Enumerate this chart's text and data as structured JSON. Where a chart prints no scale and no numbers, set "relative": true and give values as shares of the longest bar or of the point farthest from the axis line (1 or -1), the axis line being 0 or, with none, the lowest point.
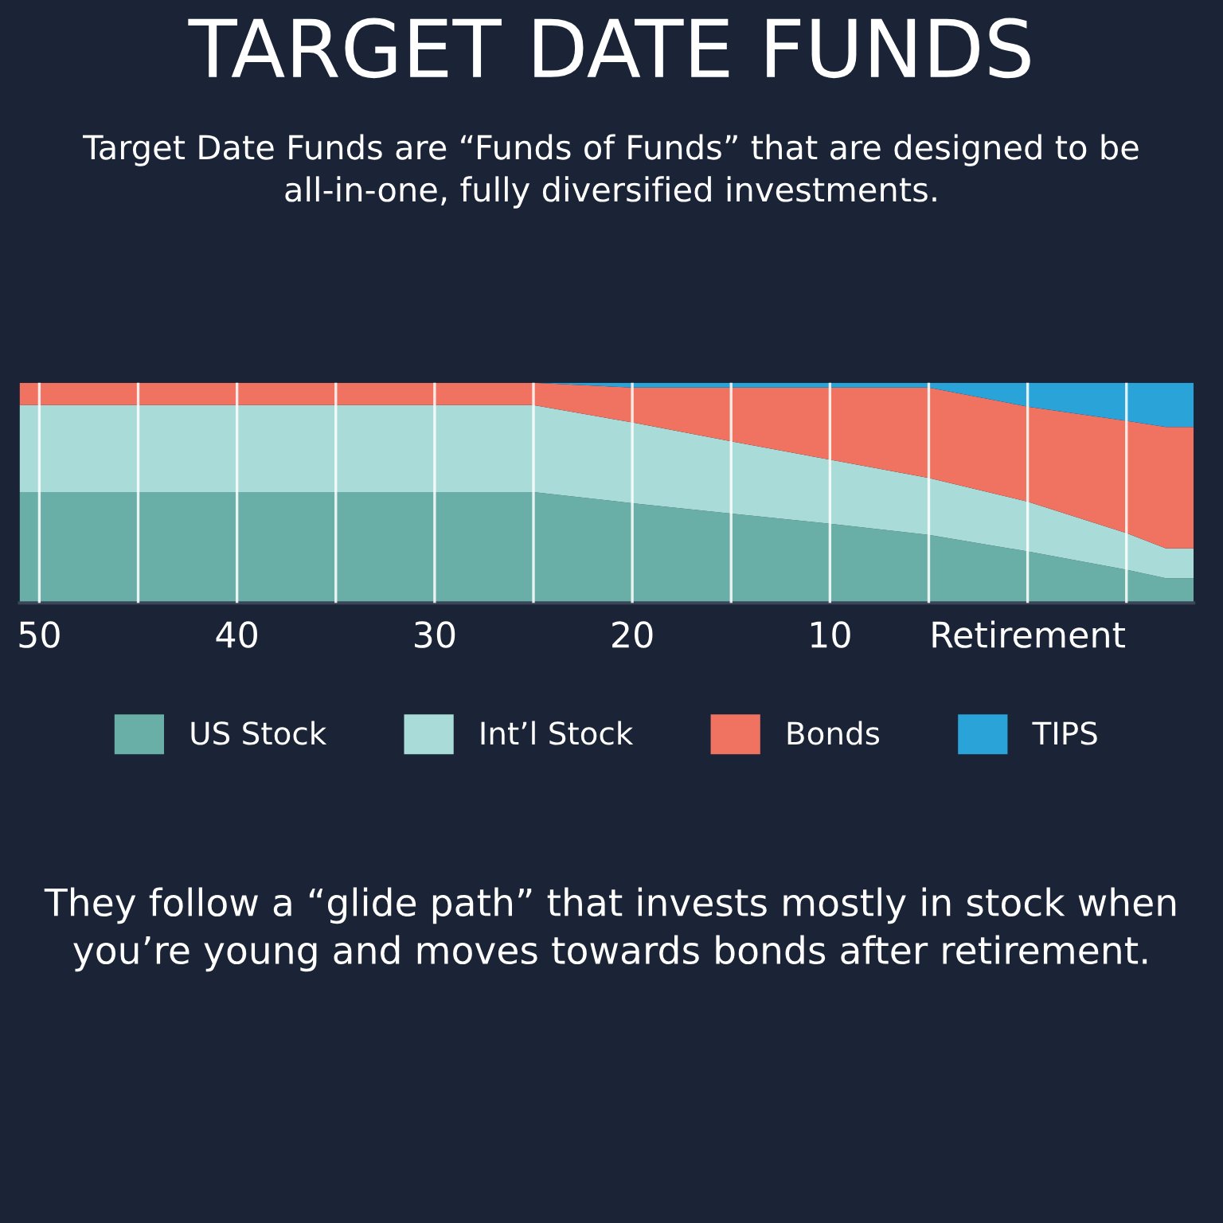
{
  "chart_data": {
    "type": "area",
    "stacked": true,
    "relative": true,
    "title": "TARGET DATE FUNDS",
    "subtitle": "Target Date Funds are “Funds of Funds” that are designed to be all-in-one, fully diversified investments.",
    "x": [
      51,
      25,
      20,
      15,
      10,
      5,
      0,
      -5,
      -7,
      -8.4
    ],
    "xlim": [
      51,
      -8.4
    ],
    "xticks": [
      50,
      {
        "value": 45,
        "label": null
      },
      40,
      {
        "value": 35,
        "label": null
      },
      30,
      {
        "value": 25,
        "label": null
      },
      20,
      {
        "value": 15,
        "label": null
      },
      10,
      {
        "value": 5,
        "label": null
      },
      {
        "value": 0,
        "label": "Retirement"
      },
      {
        "value": -5,
        "label": null
      }
    ],
    "grid": "x",
    "legend": "bottom",
    "series": [
      {
        "name": "US Stock",
        "color": "#6aafa7",
        "values": [
          0.504,
          0.504,
          0.453,
          0.406,
          0.36,
          0.309,
          0.234,
          0.151,
          0.112,
          0.112
        ]
      },
      {
        "name": "Int’l Stock",
        "color": "#a9dcd8",
        "values": [
          0.395,
          0.395,
          0.367,
          0.328,
          0.291,
          0.259,
          0.226,
          0.166,
          0.136,
          0.136
        ]
      },
      {
        "name": "Bonds",
        "color": "#f07261",
        "values": [
          0.101,
          0.101,
          0.158,
          0.244,
          0.327,
          0.41,
          0.432,
          0.51,
          0.551,
          0.551
        ]
      },
      {
        "name": "TIPS",
        "color": "#2aa3d8",
        "values": [
          0,
          0,
          0.022,
          0.022,
          0.022,
          0.022,
          0.108,
          0.173,
          0.201,
          0.201
        ]
      }
    ],
    "annotations": [
      "They follow a “glide path” that invests mostly in stock when you’re young and moves towards bonds after retirement."
    ]
  }
}
